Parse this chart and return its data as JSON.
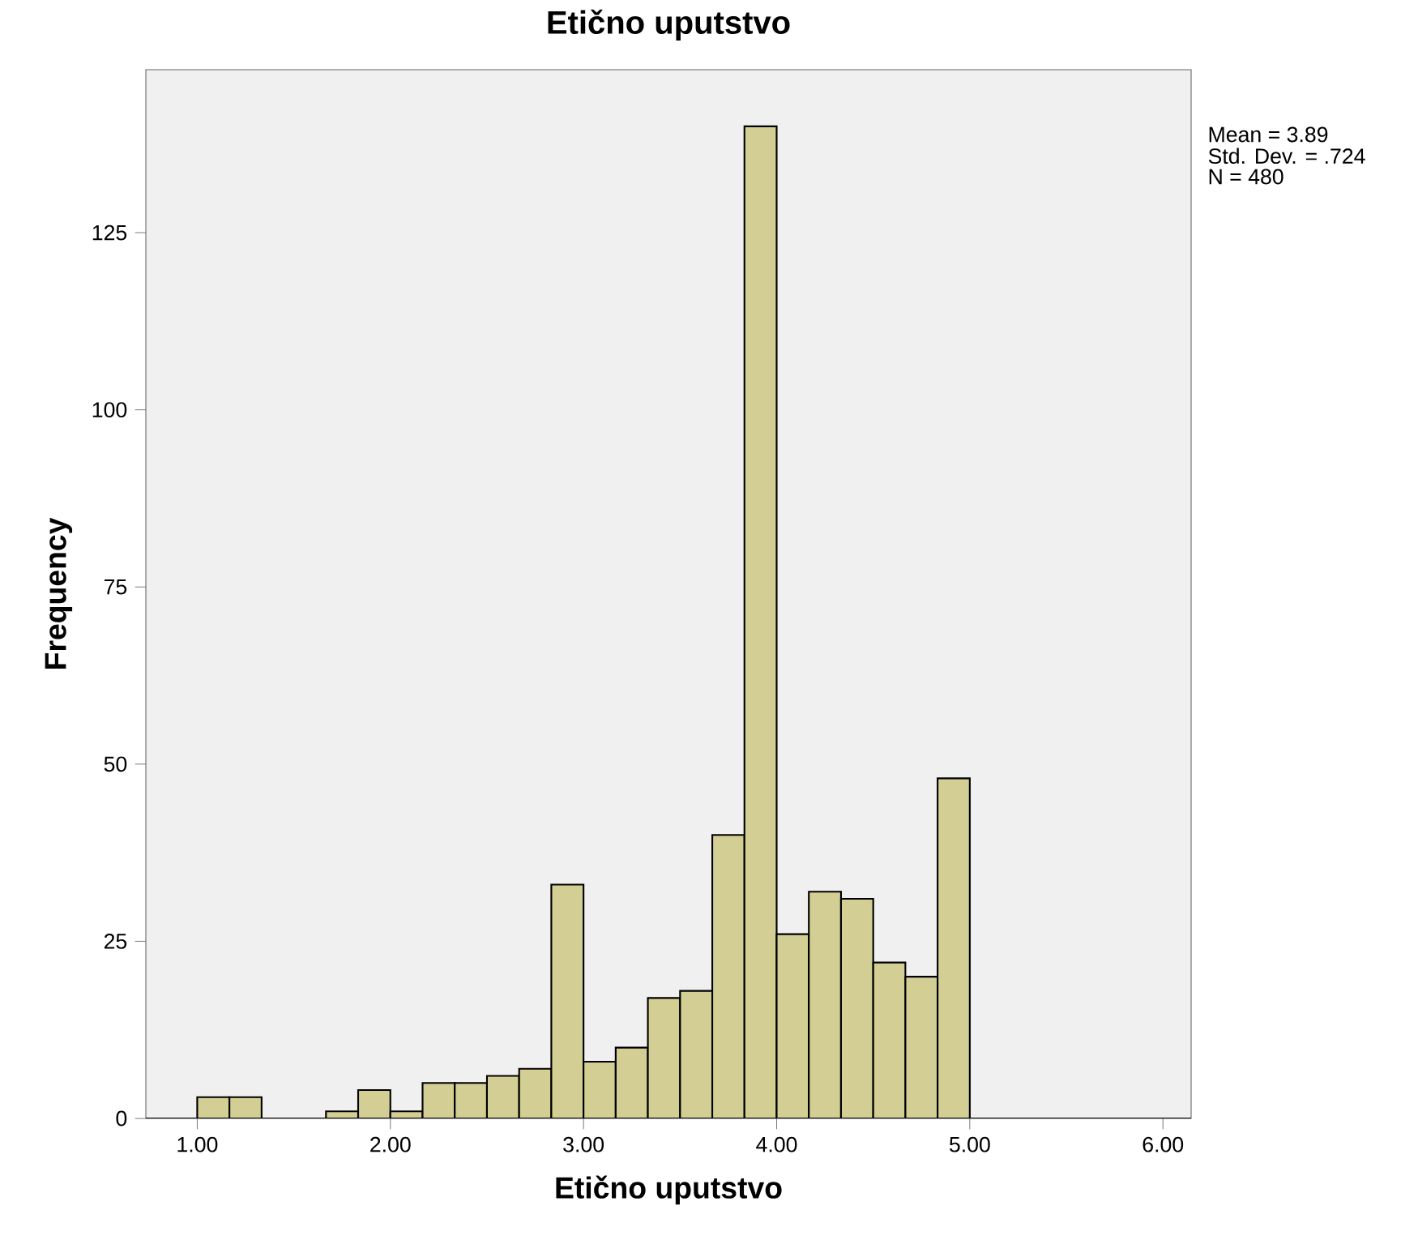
{
  "chart_data": {
    "type": "histogram",
    "title": "Etično uputstvo",
    "xlabel": "Etično uputstvo",
    "ylabel": "Frequency",
    "bins": [
      1,
      1.1667,
      1.3333,
      1.5,
      1.6667,
      1.8333,
      2,
      2.1667,
      2.3333,
      2.5,
      2.6667,
      2.8333,
      3,
      3.1667,
      3.3333,
      3.5,
      3.6667,
      3.8333,
      4,
      4.1667,
      4.3333,
      4.5,
      4.6667,
      4.8333,
      5
    ],
    "values": [
      3,
      3,
      0,
      0,
      1,
      4,
      1,
      5,
      5,
      6,
      7,
      33,
      8,
      10,
      17,
      18,
      40,
      140,
      26,
      32,
      31,
      22,
      20,
      48
    ],
    "color": "#d3ce94",
    "xlim": [
      0.734,
      6.146
    ],
    "ylim": [
      0,
      148
    ],
    "xticks": [
      {
        "value": 1,
        "label": "1.00"
      },
      {
        "value": 2,
        "label": "2.00"
      },
      {
        "value": 3,
        "label": "3.00"
      },
      {
        "value": 4,
        "label": "4.00"
      },
      {
        "value": 5,
        "label": "5.00"
      },
      {
        "value": 6,
        "label": "6.00"
      }
    ],
    "yticks": [
      0,
      25,
      50,
      75,
      100,
      125
    ],
    "annotations": [
      "Mean = 3.89",
      "Std. Dev. = .724",
      "N = 480"
    ],
    "grid": false
  }
}
